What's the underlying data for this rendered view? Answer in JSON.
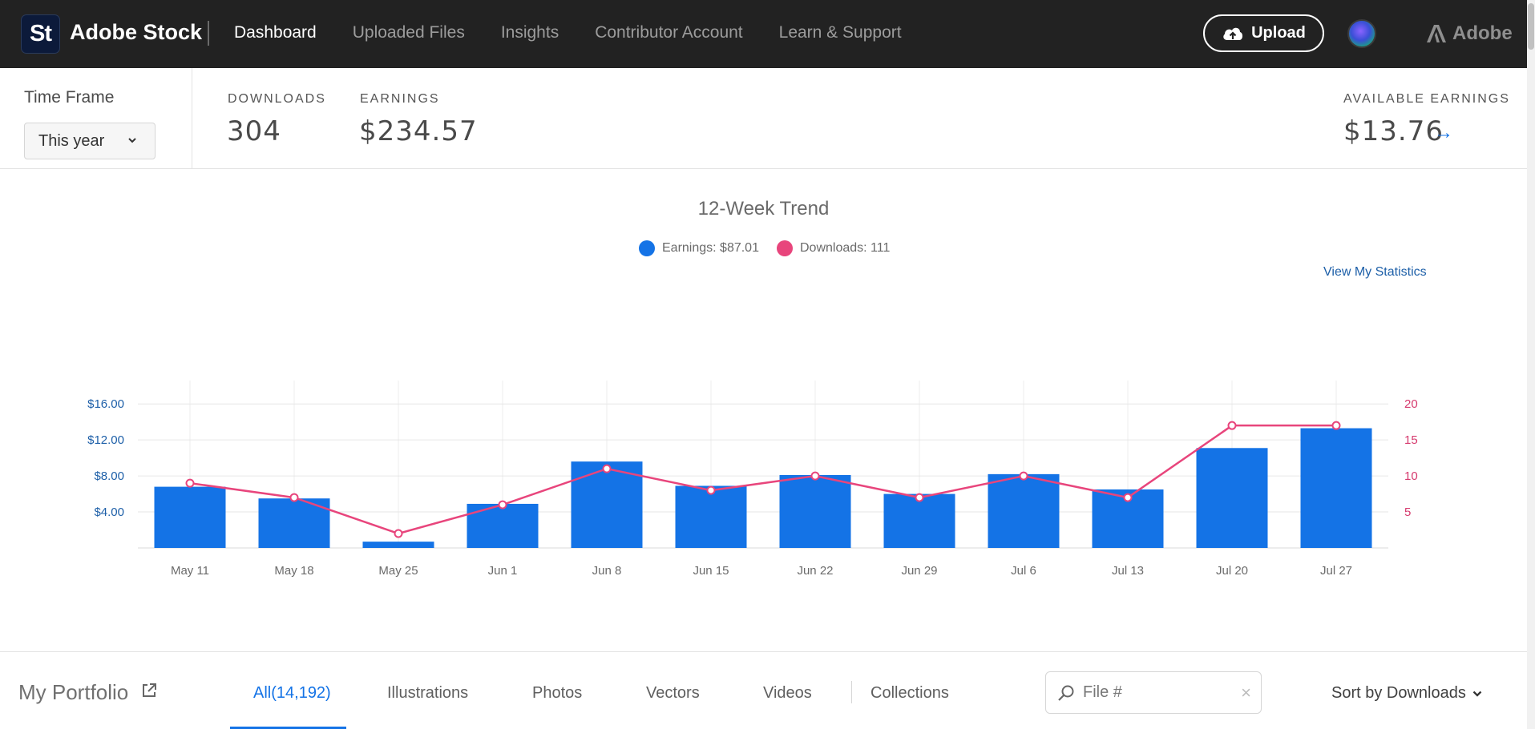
{
  "app": {
    "logo_text": "St",
    "brand": "Adobe Stock",
    "adobe_label": "Adobe"
  },
  "nav": {
    "items": [
      {
        "label": "Dashboard",
        "active": true
      },
      {
        "label": "Uploaded Files",
        "active": false
      },
      {
        "label": "Insights",
        "active": false
      },
      {
        "label": "Contributor Account",
        "active": false
      },
      {
        "label": "Learn & Support",
        "active": false
      }
    ],
    "upload_label": "Upload"
  },
  "stats": {
    "time_frame_label": "Time Frame",
    "time_frame_value": "This year",
    "downloads_label": "DOWNLOADS",
    "downloads_value": "304",
    "earnings_label": "EARNINGS",
    "earnings_value": "$234.57",
    "available_label": "AVAILABLE EARNINGS",
    "available_value": "$13.76",
    "arrow_glyph": "→"
  },
  "trend": {
    "title": "12-Week Trend",
    "legend_earnings": "Earnings: $87.01",
    "legend_downloads": "Downloads: 111",
    "view_stats": "View My Statistics"
  },
  "colors": {
    "earnings": "#1473e6",
    "downloads": "#e8457c",
    "topbar": "#222222",
    "accent": "#1473e6"
  },
  "chart_data": {
    "type": "bar",
    "title": "12-Week Trend",
    "categories": [
      "May 11",
      "May 18",
      "May 25",
      "Jun 1",
      "Jun 8",
      "Jun 15",
      "Jun 22",
      "Jun 29",
      "Jul 6",
      "Jul 13",
      "Jul 20",
      "Jul 27"
    ],
    "series": [
      {
        "name": "Earnings",
        "type": "bar",
        "axis": "left",
        "color": "#1473e6",
        "values": [
          6.8,
          5.5,
          0.7,
          4.9,
          9.6,
          6.9,
          8.1,
          6.0,
          8.2,
          6.5,
          11.1,
          13.3
        ]
      },
      {
        "name": "Downloads",
        "type": "line",
        "axis": "right",
        "color": "#e8457c",
        "values": [
          9,
          7,
          2,
          6,
          11,
          8,
          10,
          7,
          10,
          7,
          17,
          17
        ]
      }
    ],
    "y_left": {
      "ticks": [
        4,
        8,
        12,
        16
      ],
      "tick_labels": [
        "$4.00",
        "$8.00",
        "$12.00",
        "$16.00"
      ],
      "range": [
        0,
        18.6
      ]
    },
    "y_right": {
      "ticks": [
        5,
        10,
        15,
        20
      ],
      "tick_labels": [
        "5",
        "10",
        "15",
        "20"
      ],
      "range": [
        0,
        23.25
      ]
    },
    "grid": true,
    "legend": "top-center"
  },
  "portfolio": {
    "title": "My Portfolio",
    "tabs": [
      {
        "label": "All(14,192)",
        "active": true
      },
      {
        "label": "Illustrations",
        "active": false
      },
      {
        "label": "Photos",
        "active": false
      },
      {
        "label": "Vectors",
        "active": false
      },
      {
        "label": "Videos",
        "active": false
      },
      {
        "label": "Collections",
        "active": false
      }
    ],
    "search_placeholder": "File #",
    "clear_glyph": "×",
    "sort_label": "Sort by Downloads"
  }
}
